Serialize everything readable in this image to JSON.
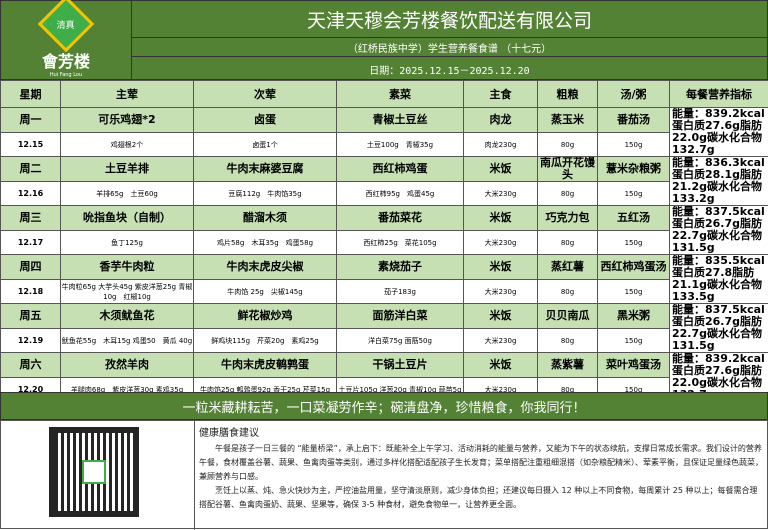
{
  "header": {
    "logo_text": "會芳楼",
    "logo_sub": "Hui Fang Lou",
    "logo_badge": "清真",
    "title": "天津天穆会芳楼餐饮配送有限公司",
    "subtitle": "（红桥民族中学）学生营养餐食谱 （十七元）",
    "date": "日期：2025.12.15－2025.12.20"
  },
  "columns": [
    "星期",
    "主荤",
    "次荤",
    "素菜",
    "主食",
    "粗粮",
    "汤/粥",
    "每餐营养指标"
  ],
  "days": [
    {
      "day": "周一",
      "date": "12.15",
      "names": [
        "可乐鸡翅*2",
        "卤蛋",
        "青椒土豆丝",
        "肉龙",
        "蒸玉米",
        "番茄汤"
      ],
      "details": [
        "鸡翅根2个",
        "卤蛋1个",
        "土豆100g　青椒35g",
        "肉龙230g",
        "80g",
        "150g"
      ],
      "nutrition": "能量：839.2kcal蛋白质27.6g脂肪22.0g碳水化合物132.7g"
    },
    {
      "day": "周二",
      "date": "12.16",
      "names": [
        "土豆羊排",
        "牛肉末麻婆豆腐",
        "西红柿鸡蛋",
        "米饭",
        "南瓜开花馒头",
        "薏米杂粮粥"
      ],
      "details": [
        "羊排65g　土豆60g",
        "豆腐112g　牛肉馅35g",
        "西红柿95g　鸡蛋45g",
        "大米230g",
        "80g",
        "150g"
      ],
      "nutrition": "能量：836.3kcal蛋白质28.1g脂肪21.2g碳水化合物133.2g"
    },
    {
      "day": "周三",
      "date": "12.17",
      "names": [
        "吮指鱼块（自制）",
        "醋溜木须",
        "番茄菜花",
        "米饭",
        "巧克力包",
        "五红汤"
      ],
      "details": [
        "鱼丁125g",
        "鸡片58g　木耳35g　鸡蛋58g",
        "西红柿25g　菜花105g",
        "大米230g",
        "80g",
        "150g"
      ],
      "nutrition": "能量：837.5kcal蛋白质26.7g脂肪22.7g碳水化合物131.5g"
    },
    {
      "day": "周四",
      "date": "12.18",
      "names": [
        "香芋牛肉粒",
        "牛肉末虎皮尖椒",
        "素烧茄子",
        "米饭",
        "蒸红薯",
        "西红柿鸡蛋汤"
      ],
      "details": [
        "牛肉粒65g 大芋头45g 紫皮洋葱25g 青椒10g　红椒10g",
        "牛肉馅 25g　尖椒145g",
        "茄子183g",
        "大米230g",
        "80g",
        "150g"
      ],
      "nutrition": "能量：835.5kcal蛋白质27.8脂肪21.1g碳水化合物133.5g"
    },
    {
      "day": "周五",
      "date": "12.19",
      "names": [
        "木须鱿鱼花",
        "鲜花椒炒鸡",
        "面筋洋白菜",
        "米饭",
        "贝贝南瓜",
        "黑米粥"
      ],
      "details": [
        "鱿鱼花55g　木耳15g 鸡蛋50　黄瓜 40g",
        "鲜鸡块115g　芹菜20g　素鸡25g",
        "洋白菜75g 面筋50g",
        "大米230g",
        "80g",
        "150g"
      ],
      "nutrition": "能量：837.5kcal蛋白质26.7g脂肪22.7g碳水化合物131.5g"
    },
    {
      "day": "周六",
      "date": "12.20",
      "names": [
        "孜然羊肉",
        "牛肉末虎皮鹌鹑蛋",
        "干锅土豆片",
        "米饭",
        "蒸紫薯",
        "菜叶鸡蛋汤"
      ],
      "details": [
        "羊腿肉68g　紫皮洋葱30g 素鸡35g",
        "牛肉馅25g 鹌鹑蛋92g 香干25g 芹菜15g",
        "土豆片105g 洋葱20g 青椒10g 蒜苗5g",
        "大米230g",
        "80g",
        "150g"
      ],
      "nutrition": "能量：839.2kcal蛋白质27.6g脂肪22.0g碳水化合物132.7g"
    }
  ],
  "banner": "一粒米藏耕耘苦，一口菜凝劳作辛；碗清盘净，珍惜粮食，你我同行！",
  "advice": {
    "title": "健康膳食建议",
    "p1": "午餐是孩子一日三餐的 “能量桥梁”，承上启下：既能补全上午学习、活动消耗的能量与营养，又能为下午的状态续航，支撑日常成长需求。我们设计的营养午餐，食材覆盖谷薯、蔬果、鱼禽肉蛋等类别，通过多样化搭配适配孩子生长发育；菜单搭配注重粗细混搭（如杂粮配精米）、荤素平衡，且保证足量绿色蔬菜，兼顾营养与口感。",
    "p2": "烹饪上以蒸、炖、急火快炒为主，严控油盐用量，坚守清淡原则，减少身体负担；还建议每日摄入 12 种以上不同食物，每周累计 25 种以上；每餐需合理搭配谷薯、鱼禽肉蛋奶、蔬果、坚果等，确保 3-5 种食材，避免食物单一，让营养更全面。"
  },
  "colors": {
    "header_green": "#548235",
    "row_green": "#c6e0b4"
  }
}
